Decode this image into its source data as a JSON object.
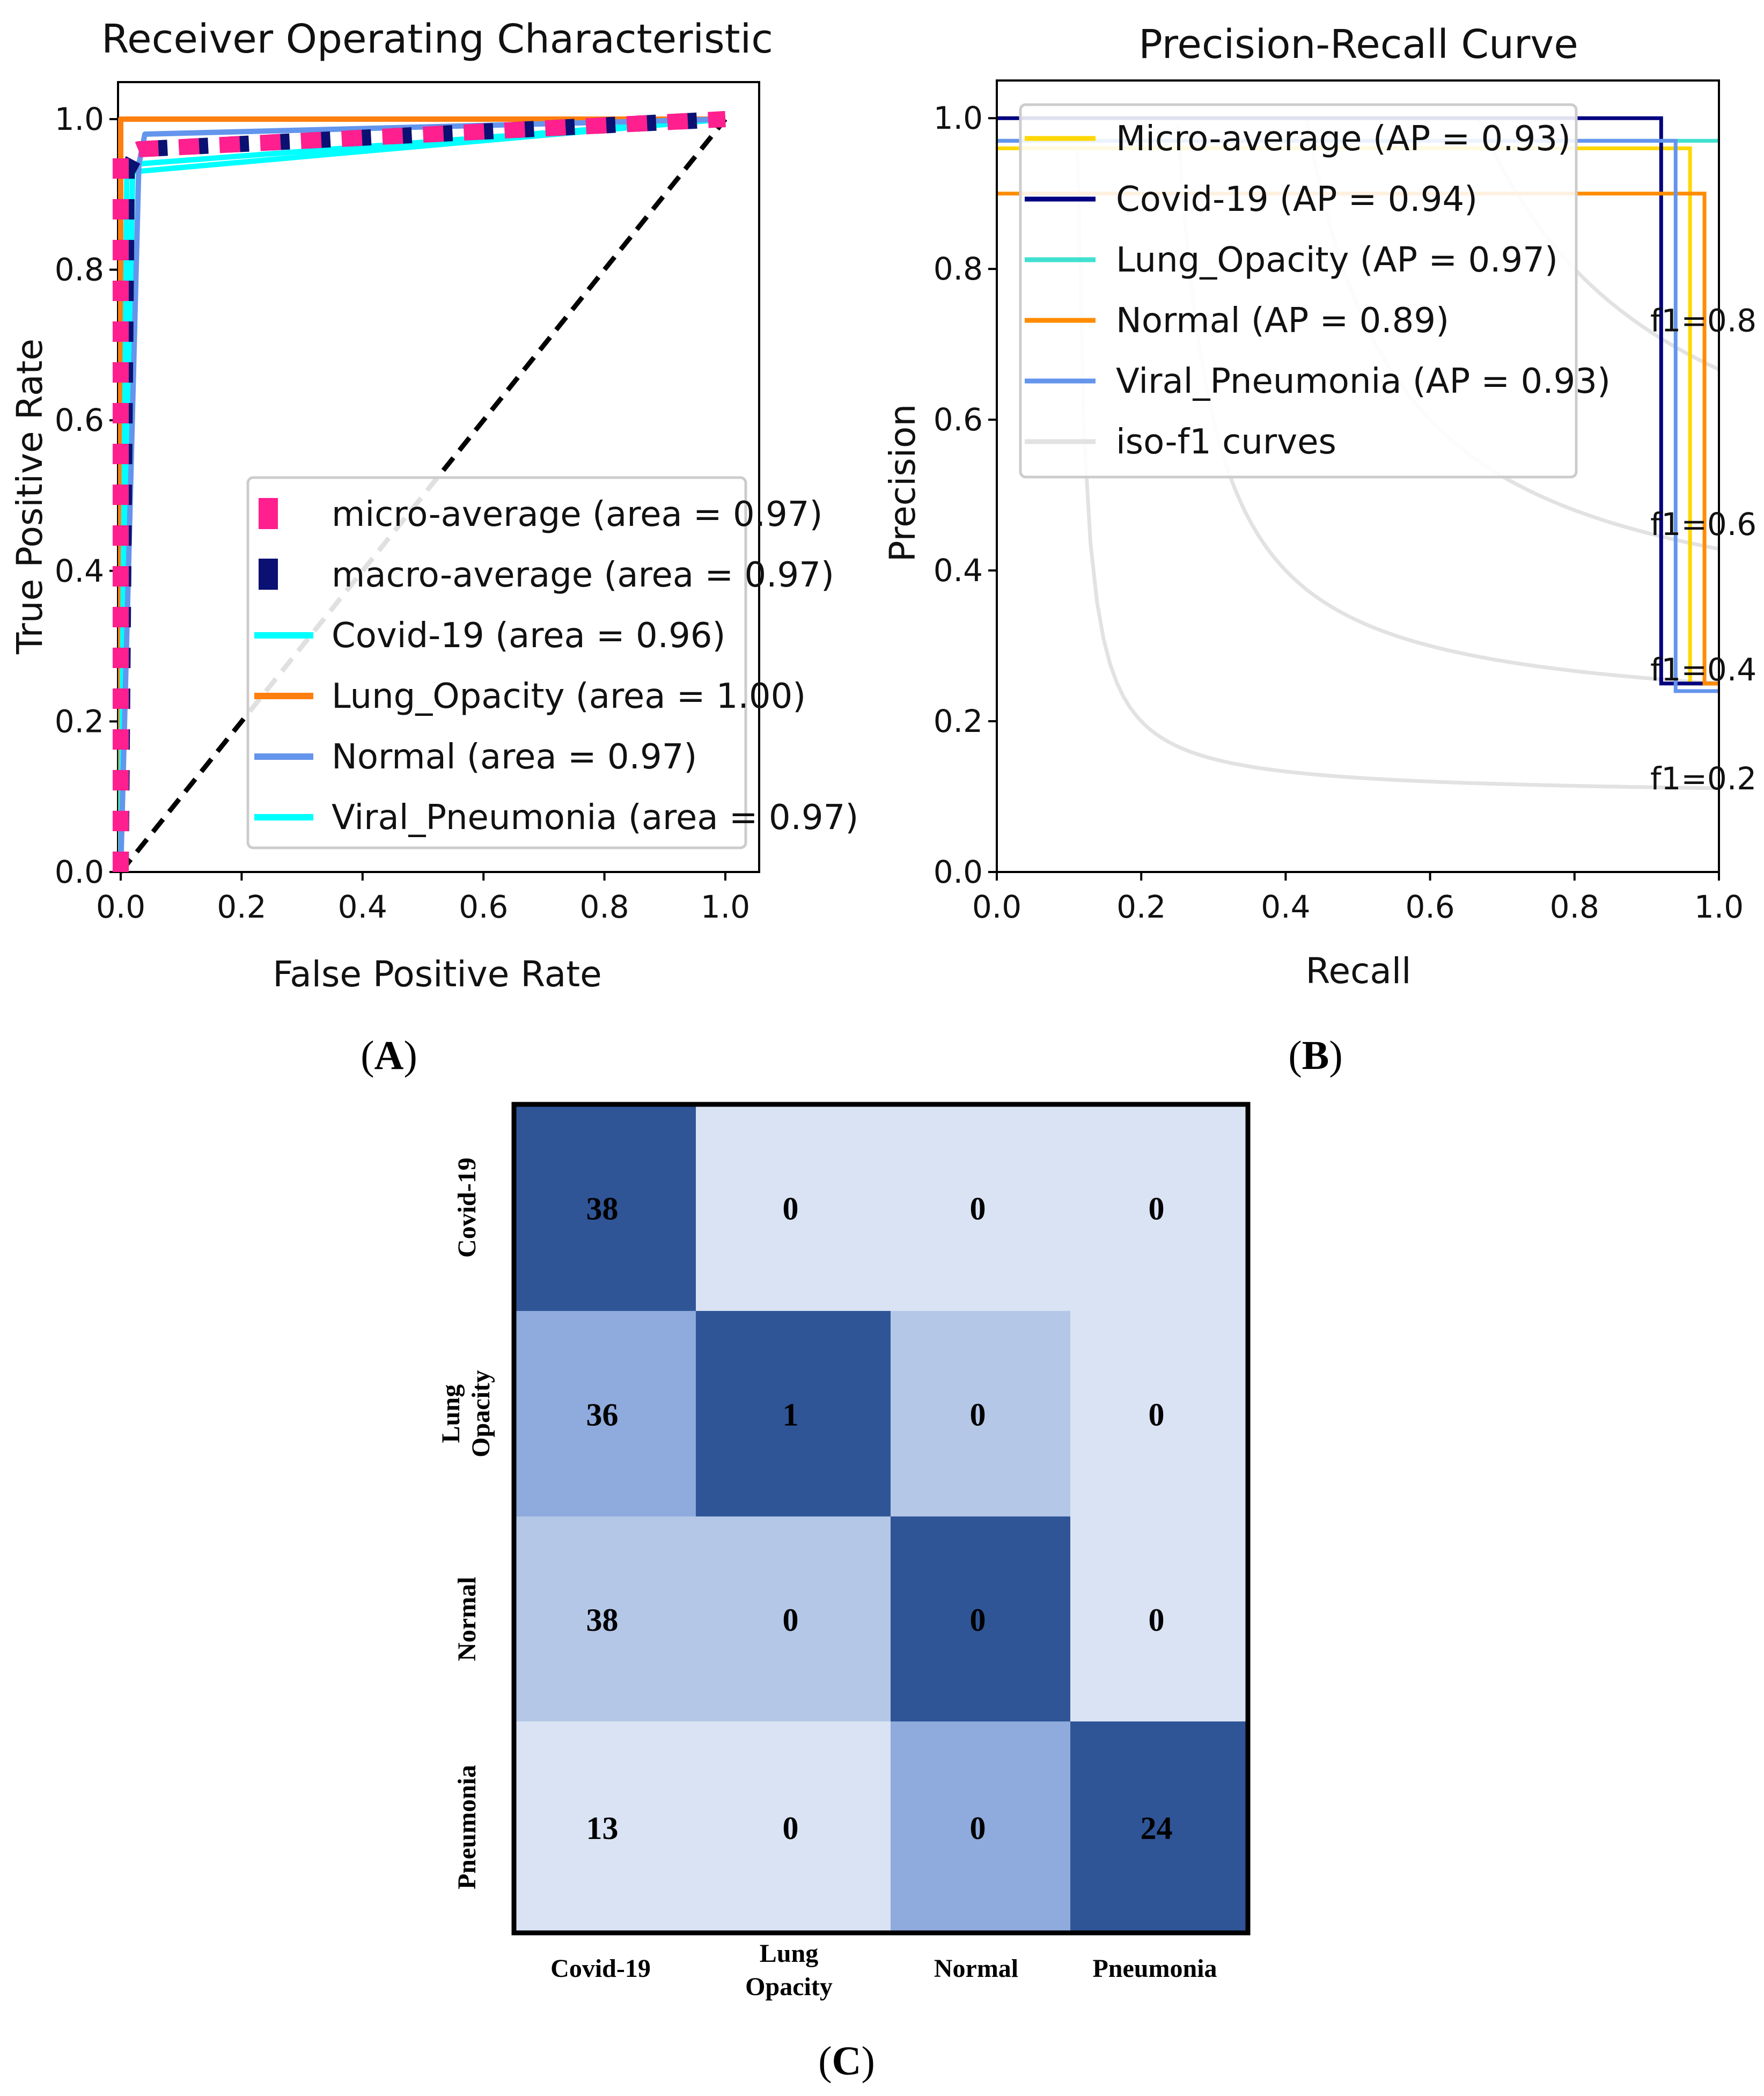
{
  "panels": {
    "A": {
      "open": "(",
      "letter": "A",
      "close": ")"
    },
    "B": {
      "open": "(",
      "letter": "B",
      "close": ")"
    },
    "C": {
      "open": "(",
      "letter": "C",
      "close": ")"
    }
  },
  "chart_data": [
    {
      "id": "roc",
      "type": "line",
      "title": "Receiver Operating Characteristic",
      "xlabel": "False Positive Rate",
      "ylabel": "True Positive Rate",
      "xlim": [
        0,
        1
      ],
      "ylim": [
        0,
        1
      ],
      "xticks": [
        "0.0",
        "0.2",
        "0.4",
        "0.6",
        "0.8",
        "1.0"
      ],
      "yticks": [
        "0.0",
        "0.2",
        "0.4",
        "0.6",
        "0.8",
        "1.0"
      ],
      "legend_position": "lower-right",
      "series": [
        {
          "name": "micro-average (area = 0.97)",
          "color": "#ff1f8e",
          "style": "dashed",
          "x": [
            0,
            0,
            0.03,
            1
          ],
          "y": [
            0,
            0.95,
            0.96,
            1
          ]
        },
        {
          "name": "macro-average (area = 0.97)",
          "color": "#0a1172",
          "style": "dashed",
          "x": [
            0,
            0.01,
            0.03,
            1
          ],
          "y": [
            0,
            0.93,
            0.96,
            1
          ]
        },
        {
          "name": "Covid-19 (area = 0.96)",
          "color": "#00ffff",
          "style": "solid",
          "x": [
            0,
            0.01,
            0.02,
            1
          ],
          "y": [
            0,
            0.92,
            0.93,
            1
          ]
        },
        {
          "name": "Lung_Opacity (area = 1.00)",
          "color": "#ff7f0e",
          "style": "solid",
          "x": [
            0,
            0,
            1
          ],
          "y": [
            0,
            1,
            1
          ]
        },
        {
          "name": "Normal (area = 0.97)",
          "color": "#6495ed",
          "style": "solid",
          "x": [
            0,
            0.03,
            0.04,
            1
          ],
          "y": [
            0,
            0.94,
            0.98,
            1
          ]
        },
        {
          "name": "Viral_Pneumonia (area = 0.97)",
          "color": "#00ffff",
          "style": "solid",
          "x": [
            0,
            0.02,
            1
          ],
          "y": [
            0,
            0.94,
            1
          ]
        }
      ],
      "diagonal": {
        "color": "#000000",
        "style": "dashed",
        "x": [
          0,
          1
        ],
        "y": [
          0,
          1
        ]
      }
    },
    {
      "id": "pr",
      "type": "line",
      "title": "Precision-Recall Curve",
      "xlabel": "Recall",
      "ylabel": "Precision",
      "xlim": [
        0,
        1
      ],
      "ylim": [
        0,
        1.05
      ],
      "xticks": [
        "0.0",
        "0.2",
        "0.4",
        "0.6",
        "0.8",
        "1.0"
      ],
      "yticks": [
        "0.0",
        "0.2",
        "0.4",
        "0.6",
        "0.8",
        "1.0"
      ],
      "legend_position": "upper-left",
      "iso_f1_labels": [
        "f1=0.8",
        "f1=0.6",
        "f1=0.4",
        "f1=0.2"
      ],
      "iso_f1_values": [
        0.8,
        0.6,
        0.4,
        0.2
      ],
      "series": [
        {
          "name": "Micro-average  (AP = 0.93)",
          "color": "#ffd700",
          "x": [
            0,
            0.96,
            0.96,
            1
          ],
          "y": [
            0.96,
            0.96,
            0.25,
            0.25
          ]
        },
        {
          "name": "Covid-19 (AP = 0.94)",
          "color": "#000080",
          "x": [
            0,
            0.92,
            0.92,
            1
          ],
          "y": [
            1.0,
            1.0,
            0.25,
            0.25
          ]
        },
        {
          "name": "Lung_Opacity (AP = 0.97)",
          "color": "#40e0d0",
          "x": [
            0,
            1
          ],
          "y": [
            0.97,
            0.97
          ]
        },
        {
          "name": "Normal (AP = 0.89)",
          "color": "#ff8c00",
          "x": [
            0,
            0.98,
            0.98,
            1
          ],
          "y": [
            0.9,
            0.9,
            0.25,
            0.25
          ]
        },
        {
          "name": "Viral_Pneumonia (AP = 0.93)",
          "color": "#6495ed",
          "x": [
            0,
            0.94,
            0.94,
            1
          ],
          "y": [
            0.97,
            0.97,
            0.24,
            0.24
          ]
        }
      ],
      "iso_legend": "iso-f1 curves"
    },
    {
      "id": "confusion",
      "type": "heatmap",
      "row_labels": [
        "Covid-19",
        "Lung Opacity",
        "Normal",
        "Pneumonia"
      ],
      "col_labels": [
        "Covid-19",
        "Lung Opacity",
        "Normal",
        "Pneumonia"
      ],
      "values": [
        [
          38,
          0,
          0,
          0
        ],
        [
          36,
          1,
          0,
          0
        ],
        [
          38,
          0,
          0,
          0
        ],
        [
          13,
          0,
          0,
          24
        ]
      ],
      "cell_colors": [
        [
          "#2f5597",
          "#dae3f3",
          "#dae3f3",
          "#dae3f3"
        ],
        [
          "#8faadc",
          "#2f5597",
          "#b4c7e7",
          "#dae3f3"
        ],
        [
          "#b4c7e7",
          "#b4c7e7",
          "#2f5597",
          "#dae3f3"
        ],
        [
          "#dae3f3",
          "#dae3f3",
          "#8faadc",
          "#2f5597"
        ]
      ]
    }
  ]
}
